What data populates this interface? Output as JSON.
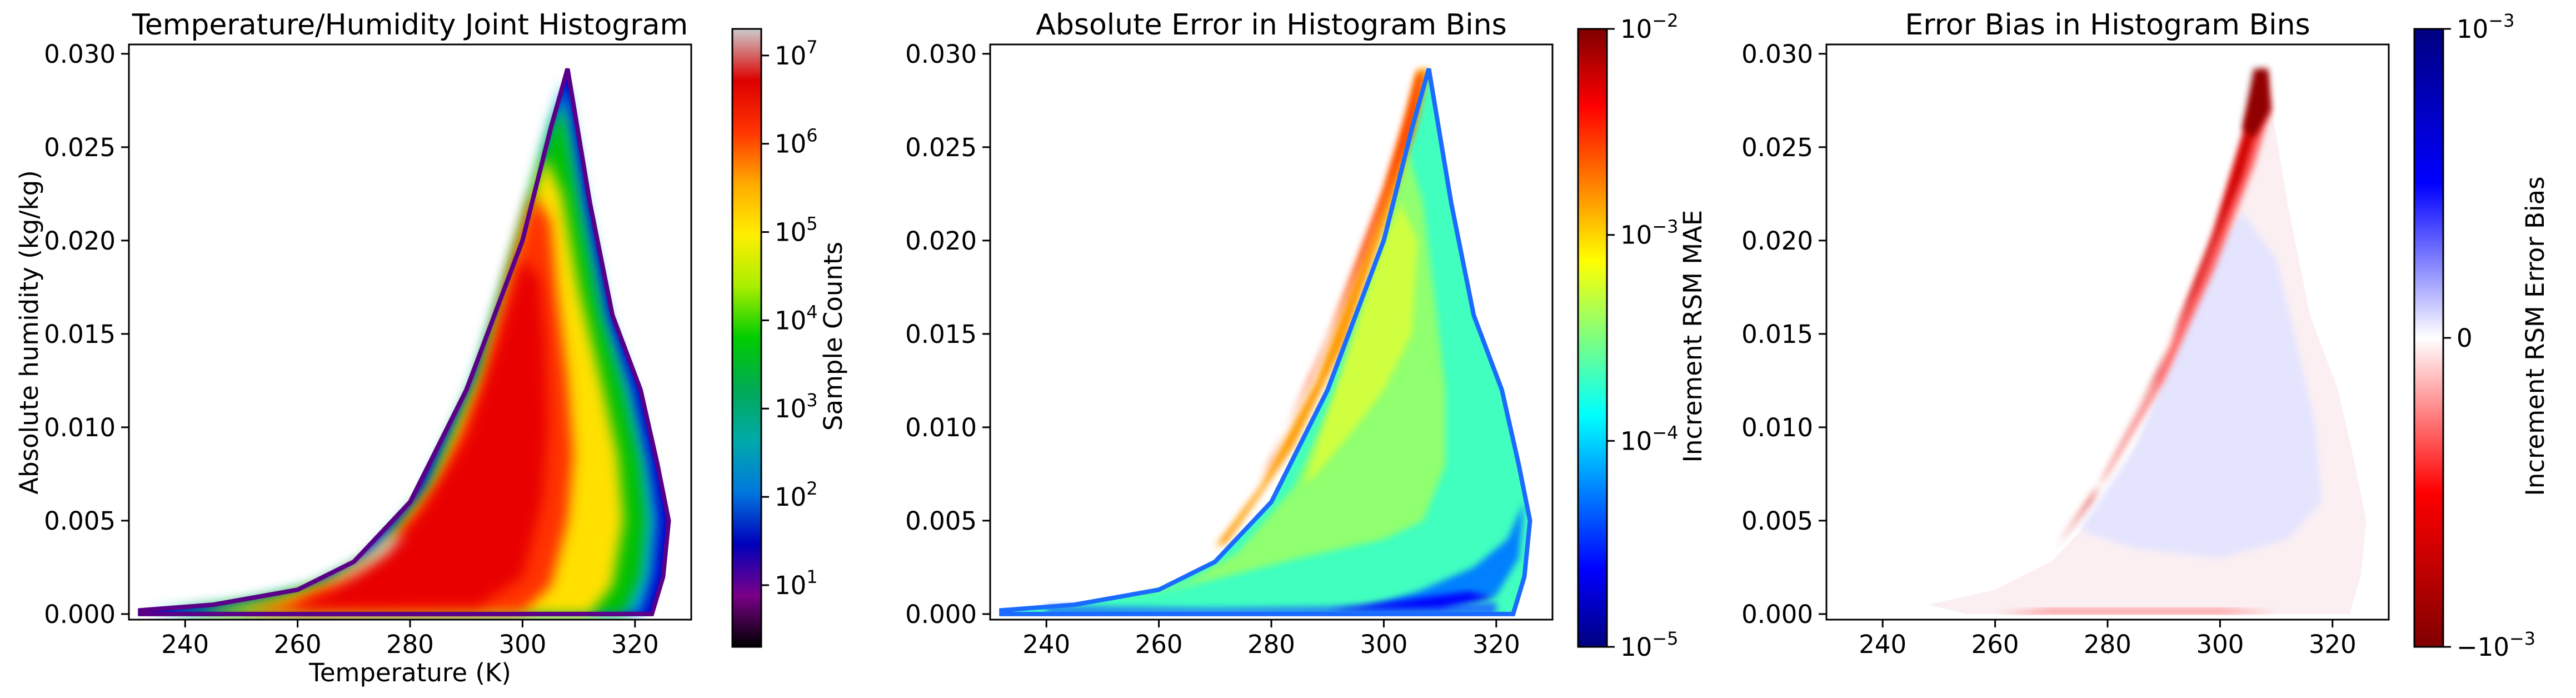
{
  "chart_data": [
    {
      "type": "heatmap",
      "title": "Temperature/Humidity Joint Histogram",
      "xlabel": "Temperature (K)",
      "ylabel": "Absolute humidity (kg/kg)",
      "xlim": [
        230,
        330
      ],
      "ylim": [
        -0.0003,
        0.0305
      ],
      "xticks": [
        "240",
        "260",
        "280",
        "300",
        "320"
      ],
      "xtick_values": [
        240,
        260,
        280,
        300,
        320
      ],
      "yticks": [
        "0.000",
        "0.005",
        "0.010",
        "0.015",
        "0.020",
        "0.025",
        "0.030"
      ],
      "ytick_values": [
        0,
        0.005,
        0.01,
        0.015,
        0.02,
        0.025,
        0.03
      ],
      "colorbar": {
        "label": "Sample Counts",
        "scale": "log",
        "range": [
          2,
          20000000
        ],
        "tick_values": [
          10,
          100,
          1000,
          10000,
          100000,
          1000000,
          10000000
        ],
        "tick_labels": [
          [
            "10",
            "1"
          ],
          [
            "10",
            "2"
          ],
          [
            "10",
            "3"
          ],
          [
            "10",
            "4"
          ],
          [
            "10",
            "5"
          ],
          [
            "10",
            "6"
          ],
          [
            "10",
            "7"
          ]
        ],
        "colormap": "nipy_spectral",
        "colors": [
          "#000000",
          "#7a0088",
          "#0000bb",
          "#0077dd",
          "#00aaaa",
          "#00aa55",
          "#00cc00",
          "#aaee00",
          "#ffee00",
          "#ffaa00",
          "#ff3300",
          "#dd0000",
          "#cccccc"
        ]
      },
      "data": {
        "description": "Filled distribution of samples; color encodes log10 count per bin",
        "boundary_upper": [
          [
            232,
            0.0002
          ],
          [
            245,
            0.0005
          ],
          [
            260,
            0.0013
          ],
          [
            270,
            0.0028
          ],
          [
            280,
            0.006
          ],
          [
            290,
            0.012
          ],
          [
            300,
            0.02
          ],
          [
            305,
            0.026
          ],
          [
            308,
            0.0292
          ]
        ],
        "boundary_lower": [
          [
            308,
            0.0292
          ],
          [
            312,
            0.022
          ],
          [
            316,
            0.016
          ],
          [
            321,
            0.012
          ],
          [
            324,
            0.008
          ],
          [
            326,
            0.005
          ],
          [
            325,
            0.002
          ],
          [
            323,
            0.0
          ],
          [
            232,
            0.0
          ]
        ],
        "peak_region": [
          [
            264,
            0.0015
          ],
          [
            272,
            0.003
          ],
          [
            276,
            0.0042
          ]
        ],
        "log10_count_levels": {
          "edge": 2,
          "outer": 4,
          "middle": 5.5,
          "core": 6.5,
          "peak": 7.3
        }
      }
    },
    {
      "type": "heatmap",
      "title": "Absolute Error in Histogram Bins",
      "xlabel": "",
      "ylabel": "",
      "xlim": [
        230,
        330
      ],
      "ylim": [
        -0.0003,
        0.0305
      ],
      "xticks": [
        "240",
        "260",
        "280",
        "300",
        "320"
      ],
      "xtick_values": [
        240,
        260,
        280,
        300,
        320
      ],
      "yticks": [
        "0.000",
        "0.005",
        "0.010",
        "0.015",
        "0.020",
        "0.025",
        "0.030"
      ],
      "ytick_values": [
        0,
        0.005,
        0.01,
        0.015,
        0.02,
        0.025,
        0.03
      ],
      "colorbar": {
        "label": "Increment RSM MAE",
        "scale": "log",
        "range": [
          1e-05,
          0.01
        ],
        "tick_values": [
          0.01,
          0.001,
          0.0001,
          1e-05
        ],
        "tick_labels": [
          [
            "10",
            "−2"
          ],
          [
            "10",
            "−3"
          ],
          [
            "10",
            "−4"
          ],
          [
            "10",
            "−5"
          ]
        ],
        "colormap": "jet",
        "colors": [
          "#00007f",
          "#0000ff",
          "#007fff",
          "#00ffff",
          "#7fff7f",
          "#ffff00",
          "#ff7f00",
          "#ff0000",
          "#7f0000"
        ]
      },
      "data": {
        "description": "Mean absolute error per bin; high error along upper/left humid edge, low error near dry/warm region",
        "typical_value": 0.0003,
        "high_error_edge": [
          [
            272,
            0.004
          ],
          [
            285,
            0.011
          ],
          [
            300,
            0.022
          ],
          [
            306,
            0.027
          ]
        ],
        "high_error_value": 0.003,
        "low_error_region": [
          [
            300,
            0.001
          ],
          [
            320,
            0.004
          ]
        ],
        "low_error_value": 5e-05
      }
    },
    {
      "type": "heatmap",
      "title": "Error Bias in Histogram Bins",
      "xlabel": "",
      "ylabel": "",
      "xlim": [
        230,
        330
      ],
      "ylim": [
        -0.0003,
        0.0305
      ],
      "xticks": [
        "240",
        "260",
        "280",
        "300",
        "320"
      ],
      "xtick_values": [
        240,
        260,
        280,
        300,
        320
      ],
      "yticks": [
        "0.000",
        "0.005",
        "0.010",
        "0.015",
        "0.020",
        "0.025",
        "0.030"
      ],
      "ytick_values": [
        0,
        0.005,
        0.01,
        0.015,
        0.02,
        0.025,
        0.03
      ],
      "colorbar": {
        "label": "Increment RSM Error Bias",
        "scale": "symlog",
        "range": [
          -0.001,
          0.001
        ],
        "tick_values": [
          0.001,
          0,
          -0.001
        ],
        "tick_labels": [
          [
            "10",
            "−3"
          ],
          [
            "0",
            ""
          ],
          [
            "−10",
            "−3"
          ]
        ],
        "colormap": "seismic_r",
        "colors": [
          "#800000",
          "#ff0000",
          "#ffffff",
          "#0000ff",
          "#000080"
        ]
      },
      "data": {
        "description": "Signed bias per bin; strong negative (red) along humid edge, weak positive (blue) interior",
        "negative_edge": [
          [
            273,
            0.004
          ],
          [
            285,
            0.011
          ],
          [
            300,
            0.022
          ],
          [
            306,
            0.028
          ]
        ],
        "negative_edge_value": -0.0009,
        "interior_value": 0.0001,
        "dry_strip_value": -0.0002
      }
    }
  ]
}
